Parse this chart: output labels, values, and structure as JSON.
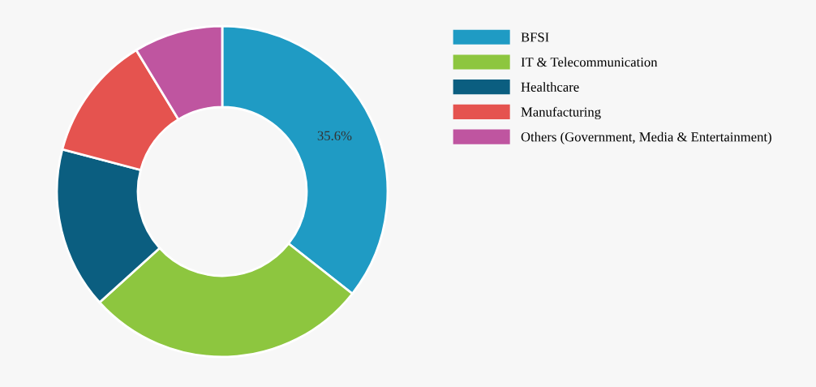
{
  "chart_data": {
    "type": "donut",
    "categories": [
      "BFSI",
      "IT & Telecommunication",
      "Healthcare",
      "Manufacturing",
      "Others (Government, Media & Entertainment)"
    ],
    "values": [
      35.6,
      27.7,
      15.8,
      12.2,
      8.7
    ],
    "colors": [
      "#1f9bc4",
      "#8dc63f",
      "#0b5e80",
      "#e5534f",
      "#bf55a0"
    ],
    "value_labels": [
      "35.6%",
      null,
      null,
      null,
      null
    ],
    "legend": "top right"
  }
}
